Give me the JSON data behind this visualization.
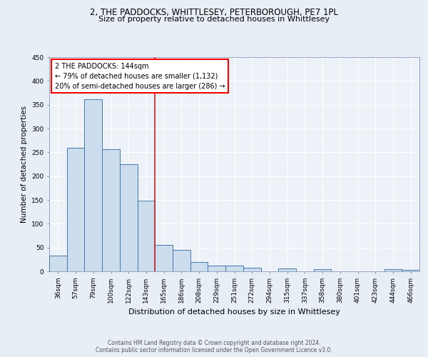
{
  "title1": "2, THE PADDOCKS, WHITTLESEY, PETERBOROUGH, PE7 1PL",
  "title2": "Size of property relative to detached houses in Whittlesey",
  "xlabel": "Distribution of detached houses by size in Whittlesey",
  "ylabel": "Number of detached properties",
  "footer1": "Contains HM Land Registry data © Crown copyright and database right 2024.",
  "footer2": "Contains public sector information licensed under the Open Government Licence v3.0.",
  "annotation_line1": "2 THE PADDOCKS: 144sqm",
  "annotation_line2": "← 79% of detached houses are smaller (1,132)",
  "annotation_line3": "20% of semi-detached houses are larger (286) →",
  "bar_labels": [
    "36sqm",
    "57sqm",
    "79sqm",
    "100sqm",
    "122sqm",
    "143sqm",
    "165sqm",
    "186sqm",
    "208sqm",
    "229sqm",
    "251sqm",
    "272sqm",
    "294sqm",
    "315sqm",
    "337sqm",
    "358sqm",
    "380sqm",
    "401sqm",
    "423sqm",
    "444sqm",
    "466sqm"
  ],
  "bar_values": [
    33,
    260,
    362,
    257,
    225,
    148,
    55,
    45,
    20,
    12,
    12,
    8,
    0,
    6,
    0,
    4,
    0,
    0,
    0,
    4,
    3
  ],
  "bar_color": "#ccdded",
  "bar_edge_color": "#4477aa",
  "vline_x": 5.5,
  "vline_color": "#cc2222",
  "background_color": "#e8eef5",
  "plot_bg_color": "#edf2f8",
  "grid_color": "#ffffff",
  "ylim": [
    0,
    450
  ],
  "yticks": [
    0,
    50,
    100,
    150,
    200,
    250,
    300,
    350,
    400,
    450
  ],
  "title1_fontsize": 8.5,
  "title2_fontsize": 8.0,
  "ylabel_fontsize": 7.5,
  "xlabel_fontsize": 8.0,
  "tick_fontsize": 6.5,
  "annot_fontsize": 7.0,
  "footer_fontsize": 5.5
}
